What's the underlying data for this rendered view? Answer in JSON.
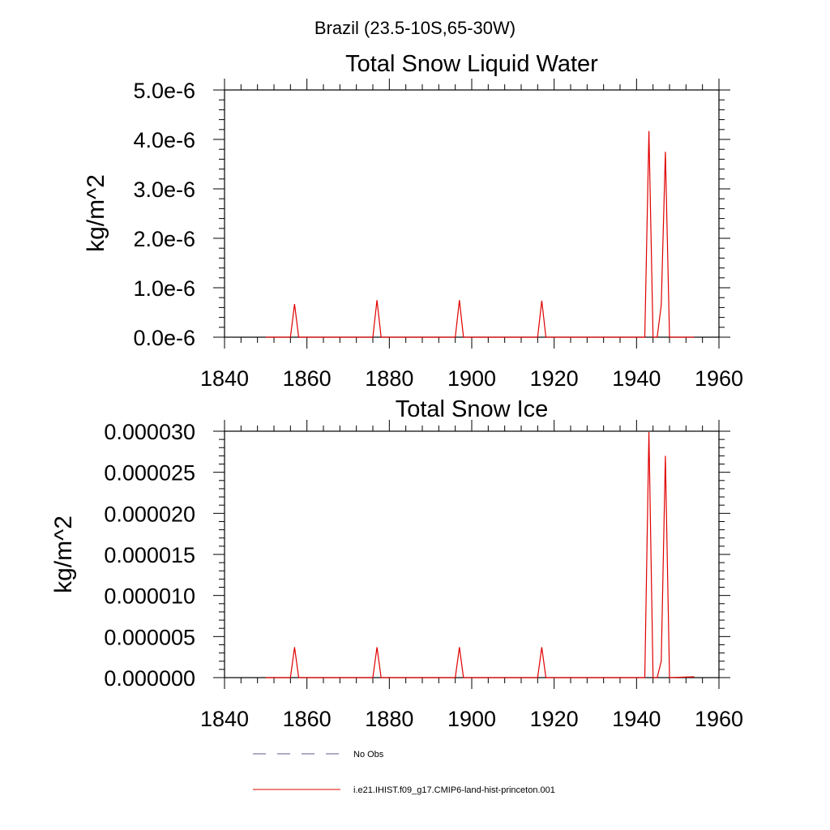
{
  "figure": {
    "main_title": "Brazil (23.5-10S,65-30W)"
  },
  "legend": {
    "placement": "bottom",
    "entries": [
      {
        "label": "No Obs",
        "color": "#5a5a8a",
        "style": "dashed"
      },
      {
        "label": "i.e21.IHIST.f09_g17.CMIP6-land-hist-princeton.001",
        "color": "#e00000",
        "style": "solid"
      }
    ]
  },
  "chart_data": [
    {
      "type": "line",
      "title": "Total Snow Liquid Water",
      "xlabel": "",
      "ylabel": "kg/m^2",
      "xlim": [
        1840,
        1960
      ],
      "ylim": [
        0,
        5e-06
      ],
      "grid": false,
      "x_ticks": [
        1840,
        1860,
        1880,
        1900,
        1920,
        1940,
        1960
      ],
      "x_tick_labels": [
        "1840",
        "1860",
        "1880",
        "1900",
        "1920",
        "1940",
        "1960"
      ],
      "y_ticks": [
        0,
        1e-06,
        2e-06,
        3e-06,
        4e-06,
        5e-06
      ],
      "y_tick_labels": [
        "0.0e-6",
        "1.0e-6",
        "2.0e-6",
        "3.0e-6",
        "4.0e-6",
        "5.0e-6"
      ],
      "series": [
        {
          "name": "i.e21.IHIST.f09_g17.CMIP6-land-hist-princeton.001",
          "color": "#e00000",
          "x": [
            1850,
            1856,
            1857,
            1858,
            1876,
            1877,
            1878,
            1896,
            1897,
            1898,
            1916,
            1917,
            1918,
            1942,
            1943,
            1944,
            1945,
            1946,
            1947,
            1948,
            1954
          ],
          "y": [
            0,
            0,
            6.7e-07,
            0,
            0,
            7.5e-07,
            0,
            0,
            7.5e-07,
            0,
            0,
            7.4e-07,
            0,
            0,
            4.17e-06,
            0,
            0,
            6.5e-07,
            3.75e-06,
            0,
            0
          ]
        }
      ]
    },
    {
      "type": "line",
      "title": "Total Snow Ice",
      "xlabel": "",
      "ylabel": "kg/m^2",
      "xlim": [
        1840,
        1960
      ],
      "ylim": [
        0,
        3e-05
      ],
      "grid": false,
      "x_ticks": [
        1840,
        1860,
        1880,
        1900,
        1920,
        1940,
        1960
      ],
      "x_tick_labels": [
        "1840",
        "1860",
        "1880",
        "1900",
        "1920",
        "1940",
        "1960"
      ],
      "y_ticks": [
        0,
        5e-06,
        1e-05,
        1.5e-05,
        2e-05,
        2.5e-05,
        3e-05
      ],
      "y_tick_labels": [
        "0.000000",
        "0.000005",
        "0.000010",
        "0.000015",
        "0.000020",
        "0.000025",
        "0.000030"
      ],
      "series": [
        {
          "name": "i.e21.IHIST.f09_g17.CMIP6-land-hist-princeton.001",
          "color": "#e00000",
          "x": [
            1850,
            1856,
            1857,
            1858,
            1876,
            1877,
            1878,
            1896,
            1897,
            1898,
            1916,
            1917,
            1918,
            1942,
            1943,
            1944,
            1945,
            1946,
            1947,
            1948,
            1954
          ],
          "y": [
            0,
            0,
            3.7e-06,
            0,
            0,
            3.7e-06,
            0,
            0,
            3.7e-06,
            0,
            0,
            3.7e-06,
            0,
            0,
            2.99e-05,
            0,
            0,
            2e-06,
            2.7e-05,
            0,
            1e-07
          ]
        }
      ]
    }
  ]
}
